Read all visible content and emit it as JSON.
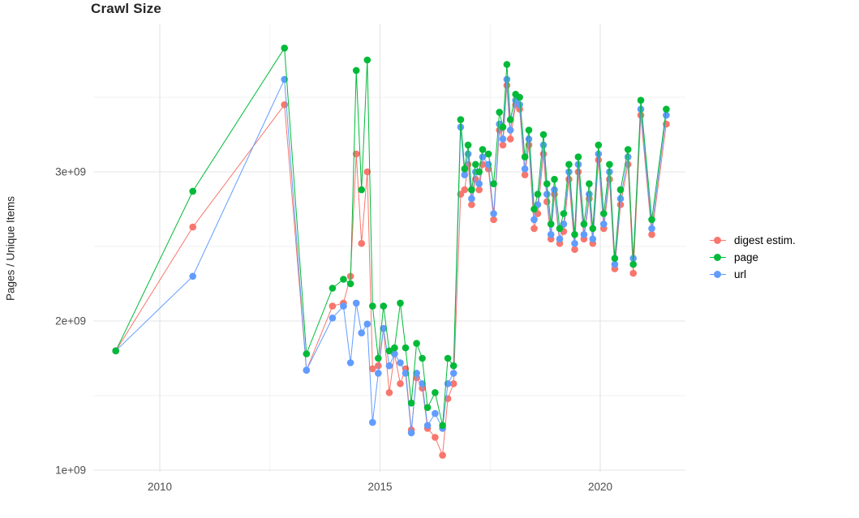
{
  "title": "Crawl Size",
  "y_axis_title": "Pages / Unique Items",
  "legend": {
    "position": "right",
    "items": [
      {
        "label": "digest estim.",
        "color": "#F8766D"
      },
      {
        "label": "page",
        "color": "#00BA38"
      },
      {
        "label": "url",
        "color": "#619CFF"
      }
    ]
  },
  "colors": {
    "background": "#ffffff",
    "grid_major": "#e4e4e4",
    "grid_minor": "#f1f1f1",
    "tick_label": "#4d4d4d",
    "title_text": "#262626"
  },
  "chart_data": {
    "type": "line",
    "title": "Crawl Size",
    "xlabel": "",
    "ylabel": "Pages / Unique Items",
    "units": "values are billions of pages/unique items (multiply by 1e9)",
    "xlim": [
      2008.5,
      2021.95
    ],
    "ylim": [
      1.0,
      4.0
    ],
    "grid": true,
    "legend_position": "right",
    "x_ticks": [
      {
        "value": 2010,
        "label": "2010"
      },
      {
        "value": 2015,
        "label": "2015"
      },
      {
        "value": 2020,
        "label": "2020"
      }
    ],
    "y_ticks": [
      {
        "value": 1.0,
        "label": "1e+09"
      },
      {
        "value": 2.0,
        "label": "2e+09"
      },
      {
        "value": 3.0,
        "label": "3e+09"
      }
    ],
    "x_minor_ticks": [
      2012.5,
      2017.5
    ],
    "y_minor_ticks": [
      1.5,
      2.5,
      3.5
    ],
    "x": [
      2009.0,
      2010.75,
      2012.83,
      2013.33,
      2013.92,
      2014.17,
      2014.33,
      2014.46,
      2014.58,
      2014.71,
      2014.83,
      2014.96,
      2015.08,
      2015.21,
      2015.33,
      2015.46,
      2015.58,
      2015.71,
      2015.83,
      2015.96,
      2016.08,
      2016.25,
      2016.42,
      2016.54,
      2016.67,
      2016.83,
      2016.92,
      2017.0,
      2017.08,
      2017.17,
      2017.25,
      2017.33,
      2017.46,
      2017.58,
      2017.71,
      2017.79,
      2017.88,
      2017.96,
      2018.08,
      2018.17,
      2018.29,
      2018.38,
      2018.5,
      2018.58,
      2018.71,
      2018.79,
      2018.88,
      2018.96,
      2019.08,
      2019.17,
      2019.29,
      2019.42,
      2019.5,
      2019.63,
      2019.75,
      2019.83,
      2019.96,
      2020.08,
      2020.21,
      2020.33,
      2020.46,
      2020.63,
      2020.75,
      2020.92,
      2021.17,
      2021.5
    ],
    "series": [
      {
        "name": "digest estim.",
        "color": "#F8766D",
        "values": [
          1.8,
          2.63,
          3.45,
          1.67,
          2.1,
          2.12,
          2.3,
          3.12,
          2.52,
          3.0,
          1.68,
          1.7,
          1.95,
          1.52,
          1.78,
          1.58,
          1.68,
          1.27,
          1.62,
          1.55,
          1.28,
          1.22,
          1.1,
          1.48,
          1.58,
          2.85,
          2.88,
          3.05,
          2.78,
          2.95,
          2.88,
          3.05,
          3.02,
          2.68,
          3.28,
          3.18,
          3.58,
          3.22,
          3.45,
          3.42,
          2.98,
          3.18,
          2.62,
          2.72,
          3.12,
          2.8,
          2.55,
          2.85,
          2.52,
          2.6,
          2.95,
          2.48,
          3.0,
          2.55,
          2.82,
          2.52,
          3.08,
          2.62,
          2.95,
          2.35,
          2.78,
          3.05,
          2.32,
          3.38,
          2.58,
          3.32
        ]
      },
      {
        "name": "page",
        "color": "#00BA38",
        "values": [
          1.8,
          2.87,
          3.83,
          1.78,
          2.22,
          2.28,
          2.25,
          3.68,
          2.88,
          3.75,
          2.1,
          1.75,
          2.1,
          1.8,
          1.82,
          2.12,
          1.82,
          1.45,
          1.85,
          1.75,
          1.42,
          1.52,
          1.3,
          1.75,
          1.7,
          3.35,
          3.02,
          3.18,
          2.88,
          3.05,
          3.0,
          3.15,
          3.12,
          2.92,
          3.4,
          3.3,
          3.72,
          3.35,
          3.52,
          3.5,
          3.1,
          3.28,
          2.75,
          2.85,
          3.25,
          2.92,
          2.65,
          2.95,
          2.62,
          2.72,
          3.05,
          2.58,
          3.1,
          2.65,
          2.92,
          2.62,
          3.18,
          2.72,
          3.05,
          2.42,
          2.88,
          3.15,
          2.38,
          3.48,
          2.68,
          3.42
        ]
      },
      {
        "name": "url",
        "color": "#619CFF",
        "values": [
          1.8,
          2.3,
          3.62,
          1.67,
          2.02,
          2.1,
          1.72,
          2.12,
          1.92,
          1.98,
          1.32,
          1.65,
          1.95,
          1.7,
          1.78,
          1.72,
          1.65,
          1.25,
          1.65,
          1.58,
          1.3,
          1.38,
          1.28,
          1.58,
          1.65,
          3.3,
          2.98,
          3.12,
          2.82,
          3.0,
          2.92,
          3.1,
          3.05,
          2.72,
          3.32,
          3.22,
          3.62,
          3.28,
          3.48,
          3.45,
          3.02,
          3.22,
          2.68,
          2.78,
          3.18,
          2.85,
          2.58,
          2.88,
          2.55,
          2.65,
          3.0,
          2.52,
          3.05,
          2.58,
          2.85,
          2.55,
          3.12,
          2.65,
          3.0,
          2.38,
          2.82,
          3.1,
          2.42,
          3.42,
          2.62,
          3.38
        ]
      }
    ]
  }
}
